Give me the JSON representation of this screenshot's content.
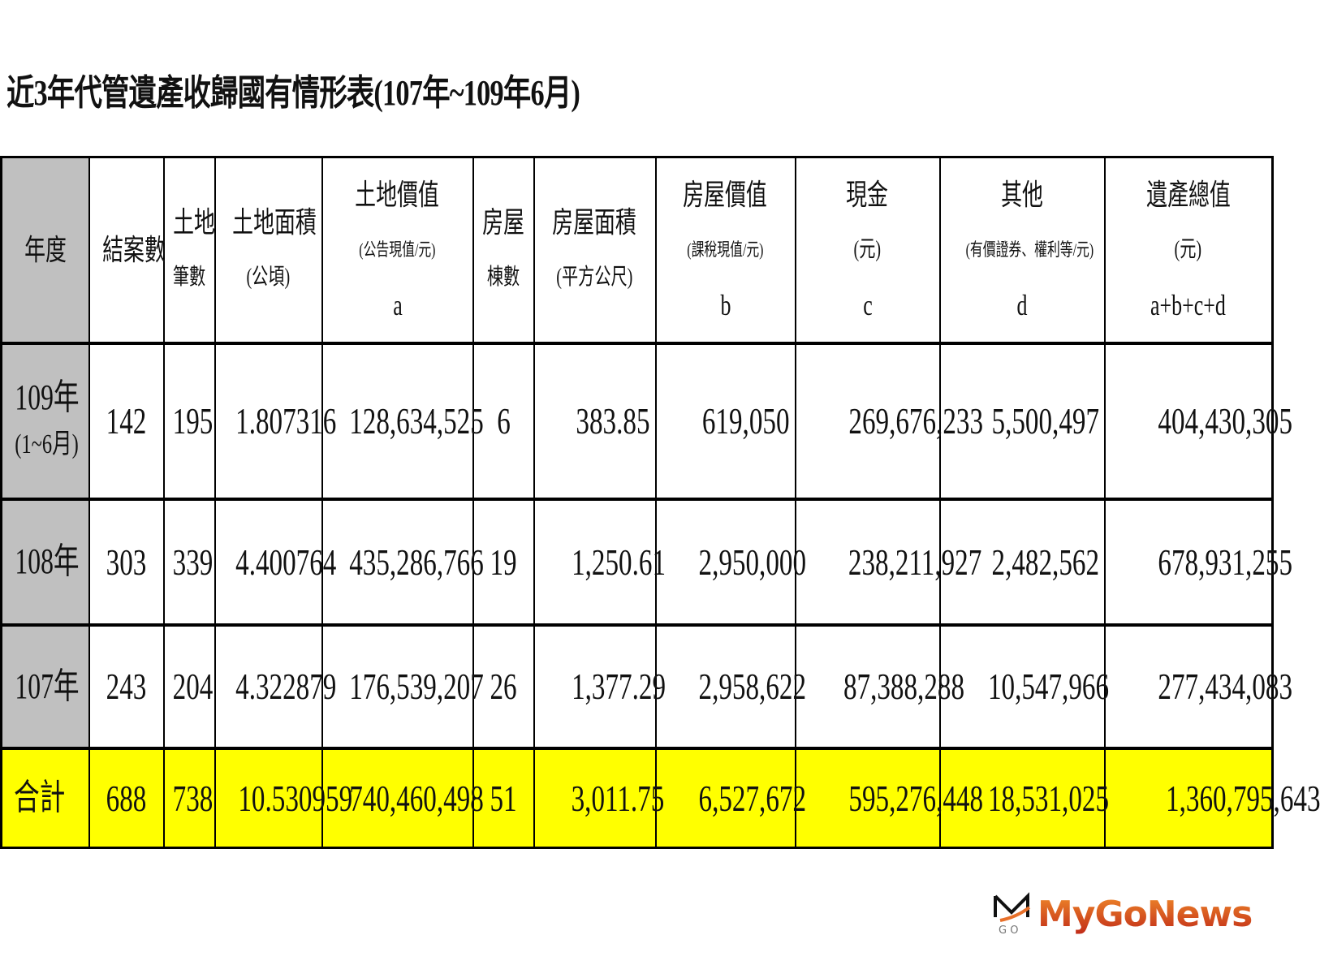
{
  "title": "近3年代管遺產收歸國有情形表(107年~109年6月)",
  "table": {
    "headers": [
      {
        "lines": [
          "年度"
        ]
      },
      {
        "lines": [
          "結案數"
        ]
      },
      {
        "lines": [
          "土地",
          "筆數"
        ]
      },
      {
        "lines": [
          "土地面積",
          "(公頃)"
        ]
      },
      {
        "lines": [
          "土地價值",
          "(公告現值/元)",
          "a"
        ]
      },
      {
        "lines": [
          "房屋",
          "棟數"
        ]
      },
      {
        "lines": [
          "房屋面積",
          "(平方公尺)"
        ]
      },
      {
        "lines": [
          "房屋價值",
          "(課稅現值/元)",
          "b"
        ]
      },
      {
        "lines": [
          "現金",
          "(元)",
          "c"
        ]
      },
      {
        "lines": [
          "其他",
          "(有價證券、權利等/元)",
          "d"
        ]
      },
      {
        "lines": [
          "遺產總值",
          "(元)",
          "a+b+c+d"
        ]
      }
    ],
    "rows": [
      {
        "year": [
          "109年",
          "(1~6月)"
        ],
        "cells": [
          "142",
          "195",
          "1.807316",
          "128,634,525",
          "6",
          "383.85",
          "619,050",
          "269,676,233",
          "5,500,497",
          "404,430,305"
        ]
      },
      {
        "year": [
          "108年"
        ],
        "cells": [
          "303",
          "339",
          "4.400764",
          "435,286,766",
          "19",
          "1,250.61",
          "2,950,000",
          "238,211,927",
          "2,482,562",
          "678,931,255"
        ]
      },
      {
        "year": [
          "107年"
        ],
        "cells": [
          "243",
          "204",
          "4.322879",
          "176,539,207",
          "26",
          "1,377.29",
          "2,958,622",
          "87,388,288",
          "10,547,966",
          "277,434,083"
        ]
      }
    ],
    "total": {
      "year": [
        "合計"
      ],
      "cells": [
        "688",
        "738",
        "10.530959",
        "740,460,498",
        "51",
        "3,011.75",
        "6,527,672",
        "595,276,448",
        "18,531,025",
        "1,360,795,643"
      ]
    }
  },
  "colors": {
    "year_column": "#c0c0c0",
    "total_row": "#ffff00",
    "logo": "#d0561f"
  },
  "logo": {
    "text": "MyGoNews",
    "icon": "mygo-logo-icon"
  }
}
